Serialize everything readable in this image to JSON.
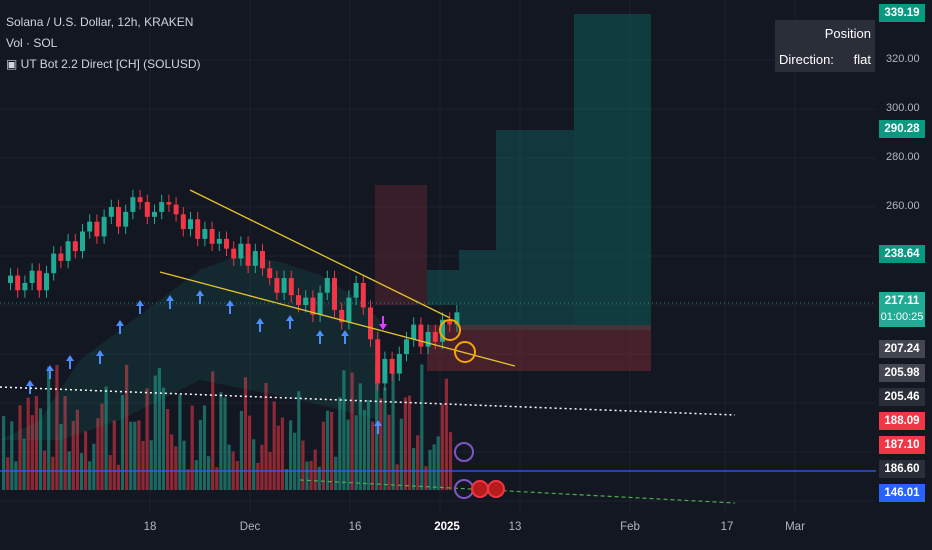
{
  "legend": {
    "symbol": "Solana / U.S. Dollar, 12h, KRAKEN",
    "volume": "Vol · SOL",
    "indicator": "UT Bot 2.2 Direct [CH] (SOLUSD)"
  },
  "position_box": {
    "title": "Position",
    "direction_label": "Direction:",
    "direction_value": "flat"
  },
  "y_axis_ticks": [
    "320.00",
    "300.00",
    "280.00",
    "260.00"
  ],
  "price_tags": [
    {
      "value": "339.19",
      "color": "#089981"
    },
    {
      "value": "290.28",
      "color": "#089981"
    },
    {
      "value": "238.64",
      "color": "#089981"
    },
    {
      "value": "217.11",
      "sub": "01:00:25",
      "color": "#22ab94"
    },
    {
      "value": "207.24",
      "color": "#434651"
    },
    {
      "value": "205.98",
      "color": "#434651"
    },
    {
      "value": "205.46",
      "color": "#2a2e39"
    },
    {
      "value": "188.09",
      "color": "#f23645"
    },
    {
      "value": "187.10",
      "color": "#f23645"
    },
    {
      "value": "186.60",
      "color": "#2a2e39"
    },
    {
      "value": "146.01",
      "color": "#2962ff"
    }
  ],
  "x_axis_ticks": [
    "18",
    "Dec",
    "16",
    "2025",
    "13",
    "Feb",
    "17",
    "Mar"
  ],
  "colors": {
    "background": "#131722",
    "up": "#22ab94",
    "down": "#f23645",
    "trendline": "#e6c229",
    "long_zone": "#0f6b63",
    "short_zone": "#7a2a33",
    "buy_arrow": "#4c8dff",
    "sell_arrow": "#e040fb"
  },
  "chart_data": {
    "type": "candlestick",
    "timeframe": "12h",
    "ylim": [
      140,
      345
    ],
    "y_ticks": [
      260,
      280,
      300,
      320
    ],
    "price_levels": [
      339.19,
      290.28,
      238.64,
      217.11,
      207.24,
      205.98,
      205.46,
      188.09,
      187.1,
      186.6,
      146.01
    ],
    "close_series": [
      232,
      226,
      229,
      234,
      226,
      233,
      241,
      238,
      246,
      242,
      250,
      254,
      248,
      256,
      260,
      252,
      258,
      264,
      262,
      256,
      258,
      262,
      261,
      257,
      251,
      255,
      247,
      251,
      245,
      247,
      243,
      239,
      245,
      236,
      242,
      235,
      231,
      225,
      231,
      224,
      220,
      223,
      216,
      225,
      231,
      218,
      213,
      223,
      229,
      219,
      206,
      188,
      198,
      192,
      200,
      206,
      212,
      203,
      209,
      205,
      214,
      212,
      217
    ],
    "annotations": {
      "position": "flat"
    }
  }
}
